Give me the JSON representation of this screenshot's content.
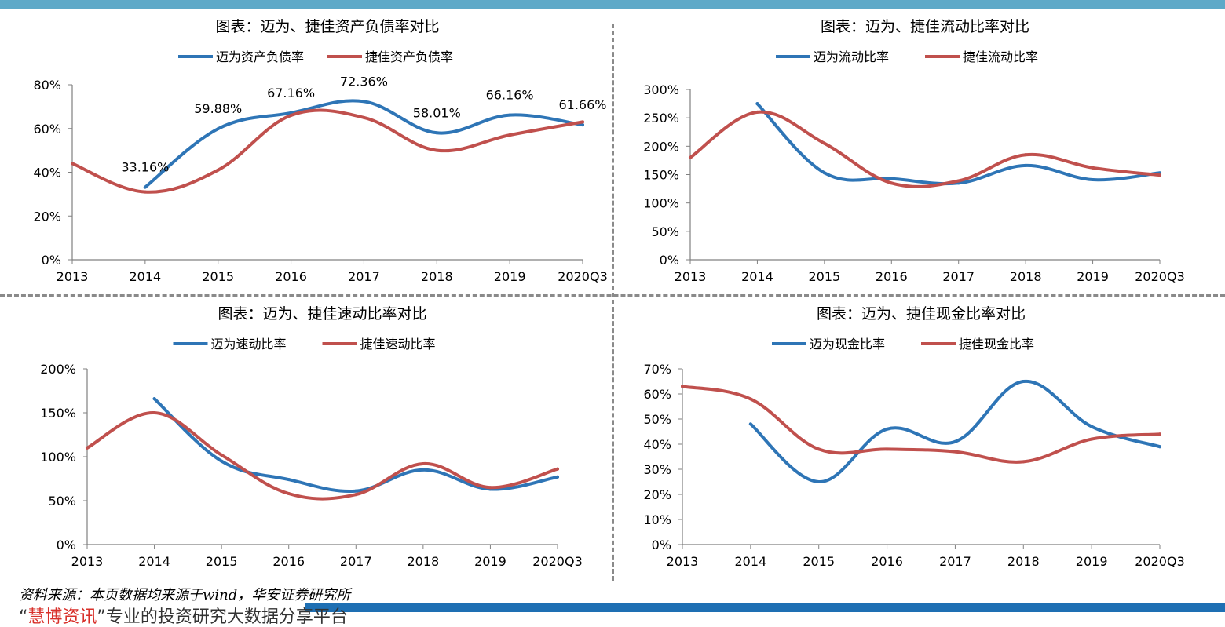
{
  "source_note": "资料来源：本页数据均来源于wind，华安证券研究所",
  "footer": {
    "quote_open": "“",
    "brand": "慧博资讯",
    "rest": "”专业的投资研究大数据分享平台"
  },
  "colors": {
    "maiwei": "#2e75b6",
    "jiejia": "#c0504d",
    "axis": "#808080"
  },
  "chart_data": [
    {
      "type": "line",
      "title": "图表：迈为、捷佳资产负债率对比",
      "categories": [
        "2013",
        "2014",
        "2015",
        "2016",
        "2017",
        "2018",
        "2019",
        "2020Q3"
      ],
      "ylim": [
        0,
        80
      ],
      "yticks": [
        0,
        20,
        40,
        60,
        80
      ],
      "ytick_labels": [
        "0%",
        "20%",
        "40%",
        "60%",
        "80%"
      ],
      "legend_placement": "top",
      "series": [
        {
          "name": "迈为资产负债率",
          "values": [
            null,
            33.16,
            59.88,
            67.16,
            72.36,
            58.01,
            66.16,
            61.66
          ],
          "data_labels": [
            "",
            "33.16%",
            "59.88%",
            "67.16%",
            "72.36%",
            "58.01%",
            "66.16%",
            "61.66%"
          ]
        },
        {
          "name": "捷佳资产负债率",
          "values": [
            44,
            31,
            41,
            66,
            65,
            50,
            57,
            63
          ]
        }
      ]
    },
    {
      "type": "line",
      "title": "图表：迈为、捷佳流动比率对比",
      "categories": [
        "2013",
        "2014",
        "2015",
        "2016",
        "2017",
        "2018",
        "2019",
        "2020Q3"
      ],
      "ylim": [
        0,
        300
      ],
      "yticks": [
        0,
        50,
        100,
        150,
        200,
        250,
        300
      ],
      "ytick_labels": [
        "0%",
        "50%",
        "100%",
        "150%",
        "200%",
        "250%",
        "300%"
      ],
      "legend_placement": "top",
      "series": [
        {
          "name": "迈为流动比率",
          "values": [
            null,
            275,
            153,
            143,
            135,
            166,
            141,
            153
          ]
        },
        {
          "name": "捷佳流动比率",
          "values": [
            180,
            260,
            205,
            135,
            139,
            185,
            162,
            149
          ]
        }
      ]
    },
    {
      "type": "line",
      "title": "图表：迈为、捷佳速动比率对比",
      "categories": [
        "2013",
        "2014",
        "2015",
        "2016",
        "2017",
        "2018",
        "2019",
        "2020Q3"
      ],
      "ylim": [
        0,
        200
      ],
      "yticks": [
        0,
        50,
        100,
        150,
        200
      ],
      "ytick_labels": [
        "0%",
        "50%",
        "100%",
        "150%",
        "200%"
      ],
      "legend_placement": "top",
      "series": [
        {
          "name": "迈为速动比率",
          "values": [
            null,
            166,
            95,
            74,
            61,
            85,
            63,
            77
          ]
        },
        {
          "name": "捷佳速动比率",
          "values": [
            110,
            150,
            102,
            58,
            57,
            92,
            65,
            86
          ]
        }
      ]
    },
    {
      "type": "line",
      "title": "图表：迈为、捷佳现金比率对比",
      "categories": [
        "2013",
        "2014",
        "2015",
        "2016",
        "2017",
        "2018",
        "2019",
        "2020Q3"
      ],
      "ylim": [
        0,
        70
      ],
      "yticks": [
        0,
        10,
        20,
        30,
        40,
        50,
        60,
        70
      ],
      "ytick_labels": [
        "0%",
        "10%",
        "20%",
        "30%",
        "40%",
        "50%",
        "60%",
        "70%"
      ],
      "legend_placement": "top",
      "series": [
        {
          "name": "迈为现金比率",
          "values": [
            null,
            48,
            25,
            46,
            41,
            65,
            47,
            39
          ]
        },
        {
          "name": "捷佳现金比率",
          "values": [
            63,
            58,
            38,
            38,
            37,
            33,
            42,
            44
          ]
        }
      ]
    }
  ]
}
